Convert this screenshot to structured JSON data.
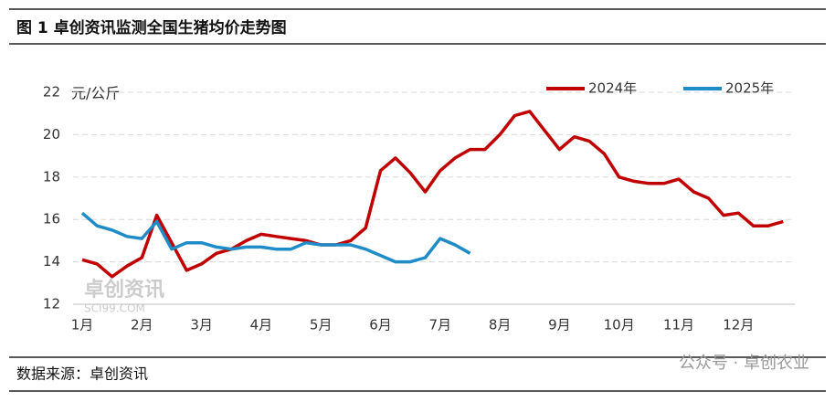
{
  "header": {
    "title": "图 1  卓创资讯监测全国生猪均价走势图"
  },
  "chart_data": {
    "type": "line",
    "y_unit": "元/公斤",
    "categories": [
      "1月",
      null,
      null,
      null,
      "2月",
      null,
      null,
      null,
      "3月",
      null,
      null,
      null,
      "4月",
      null,
      null,
      null,
      "5月",
      null,
      null,
      null,
      "6月",
      null,
      null,
      null,
      "7月",
      null,
      null,
      null,
      "8月",
      null,
      null,
      null,
      "9月",
      null,
      null,
      null,
      "10月",
      null,
      null,
      null,
      "11月",
      null,
      null,
      null,
      "12月",
      null,
      null,
      null
    ],
    "series": [
      {
        "name": "2024年",
        "color": "#c00000",
        "values": [
          14.1,
          13.9,
          13.3,
          13.8,
          14.2,
          16.2,
          14.9,
          13.6,
          13.9,
          14.4,
          14.6,
          15.0,
          15.3,
          15.2,
          15.1,
          15.0,
          14.8,
          14.8,
          15.0,
          15.6,
          18.3,
          18.9,
          18.2,
          17.3,
          18.3,
          18.9,
          19.3,
          19.3,
          20.0,
          20.9,
          21.1,
          20.2,
          19.3,
          19.9,
          19.7,
          19.1,
          18.0,
          17.8,
          17.7,
          17.7,
          17.9,
          17.3,
          17.0,
          16.2,
          16.3,
          15.7,
          15.7,
          15.9
        ]
      },
      {
        "name": "2025年",
        "color": "#1f8bc7",
        "values": [
          16.3,
          15.7,
          15.5,
          15.2,
          15.1,
          15.9,
          14.6,
          14.9,
          14.9,
          14.7,
          14.6,
          14.7,
          14.7,
          14.6,
          14.6,
          14.9,
          14.8,
          14.8,
          14.8,
          14.6,
          14.3,
          14.0,
          14.0,
          14.2,
          15.1,
          14.8,
          14.4,
          null,
          null,
          null,
          null,
          null,
          null,
          null,
          null,
          null,
          null,
          null,
          null,
          null,
          null,
          null,
          null,
          null,
          null,
          null,
          null,
          null
        ]
      }
    ],
    "ylim": [
      12,
      22
    ],
    "yticks": [
      12,
      14,
      16,
      18,
      20,
      22
    ],
    "grid": true,
    "legend": "top-right",
    "watermark": "卓创资讯",
    "watermark_sub": "SCI99.COM"
  },
  "footer": {
    "source": "数据来源：卓创资讯",
    "badge": "公众号 · 卓创农业"
  }
}
